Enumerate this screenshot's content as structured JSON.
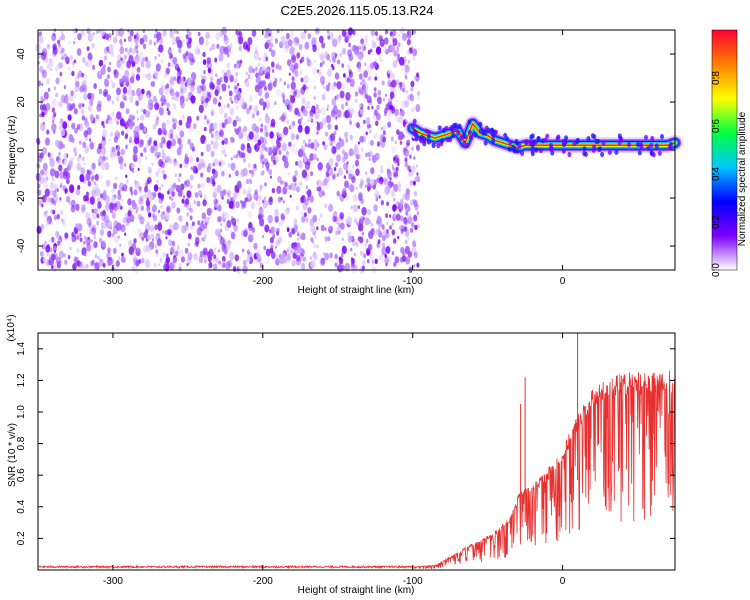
{
  "title": "C2E5.2026.115.05.13.R24",
  "chart_data": [
    {
      "type": "heatmap",
      "name": "spectrogram",
      "xlabel": "Height of straight line (km)",
      "ylabel": "Frequency (Hz)",
      "xlim": [
        -350,
        75
      ],
      "ylim": [
        -50,
        50
      ],
      "xticks": [
        -300,
        -200,
        -100,
        0
      ],
      "yticks": [
        -40,
        -20,
        0,
        20,
        40
      ],
      "noise_region_x": [
        -350,
        -100
      ],
      "signal_trace": {
        "x": [
          -100,
          -95,
          -90,
          -85,
          -80,
          -75,
          -70,
          -65,
          -60,
          -55,
          -50,
          -45,
          -40,
          -35,
          -30,
          -25,
          -20,
          -15,
          -10,
          -5,
          0,
          5,
          10,
          20,
          30,
          40,
          50,
          60,
          70,
          75
        ],
        "y": [
          9,
          7,
          6,
          5,
          6,
          7,
          8,
          3,
          11,
          7,
          6,
          4,
          3,
          2,
          1,
          2,
          2,
          2,
          2,
          2,
          2,
          2,
          2,
          2,
          2,
          2,
          2,
          2,
          2,
          3
        ]
      },
      "colorbar": {
        "label": "Normalized spectral amplitude",
        "range": [
          0,
          1
        ],
        "ticks": [
          "0.0",
          "0.2",
          "0.4",
          "0.6",
          "0.8"
        ],
        "colors": [
          "#ffffff",
          "#7a00ff",
          "#0000ff",
          "#00c8ff",
          "#00ff40",
          "#ffff00",
          "#ff8000",
          "#ff0033"
        ]
      }
    },
    {
      "type": "line",
      "name": "snr",
      "xlabel": "Height of straight line (km)",
      "ylabel": "SNR (10 * v/v)",
      "scale_label": "(x10⁴)",
      "xlim": [
        -350,
        75
      ],
      "ylim": [
        0,
        1.5
      ],
      "xticks": [
        -300,
        -200,
        -100,
        0
      ],
      "yticks": [
        "0.2",
        "0.4",
        "0.6",
        "0.8",
        "1.0",
        "1.2",
        "1.4"
      ],
      "color": "#e83030",
      "envelope": {
        "x": [
          -350,
          -100,
          -85,
          -75,
          -65,
          -55,
          -45,
          -35,
          -28,
          -20,
          -10,
          0,
          10,
          20,
          30,
          40,
          50,
          60,
          75
        ],
        "y": [
          0.02,
          0.02,
          0.03,
          0.08,
          0.14,
          0.18,
          0.24,
          0.32,
          0.5,
          0.52,
          0.62,
          0.74,
          0.95,
          1.1,
          1.17,
          1.2,
          1.21,
          1.2,
          1.22
        ]
      },
      "peaks": [
        {
          "x": 10,
          "y": 1.5
        },
        {
          "x": -25,
          "y": 1.22
        },
        {
          "x": -28,
          "y": 1.05
        }
      ]
    }
  ]
}
